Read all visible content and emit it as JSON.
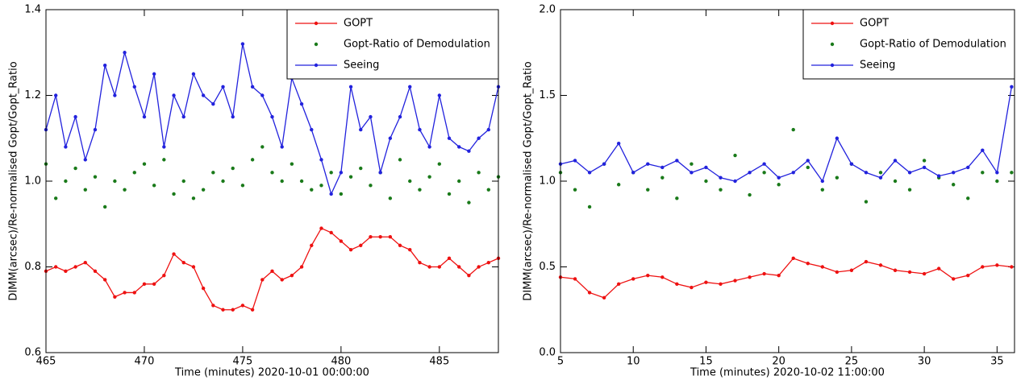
{
  "chart_data": [
    {
      "type": "line",
      "xlabel": "Time (minutes) 2020-10-01 00:00:00",
      "ylabel": "DIMM(arcsec)/Re-normalised Gopt/Gopt_Ratio",
      "xlim": [
        465,
        488
      ],
      "xticks": [
        465,
        470,
        475,
        480,
        485
      ],
      "ylim": [
        0.6,
        1.4
      ],
      "yticks": [
        0.6,
        0.8,
        {
          "value": 1,
          "label": "1.0"
        },
        1.2,
        1.4
      ],
      "legend": "top right",
      "x": [
        465,
        465.5,
        466,
        466.5,
        467,
        467.5,
        468,
        468.5,
        469,
        469.5,
        470,
        470.5,
        471,
        471.5,
        472,
        472.5,
        473,
        473.5,
        474,
        474.5,
        475,
        475.5,
        476,
        476.5,
        477,
        477.5,
        478,
        478.5,
        479,
        479.5,
        480,
        480.5,
        481,
        481.5,
        482,
        482.5,
        483,
        483.5,
        484,
        484.5,
        485,
        485.5,
        486,
        486.5,
        487,
        487.5,
        488
      ],
      "series": [
        {
          "name": "GOPT",
          "color": "#ee1111",
          "style": "line",
          "values": [
            0.79,
            0.8,
            0.79,
            0.8,
            0.81,
            0.79,
            0.77,
            0.73,
            0.74,
            0.74,
            0.76,
            0.76,
            0.78,
            0.83,
            0.81,
            0.8,
            0.75,
            0.71,
            0.7,
            0.7,
            0.71,
            0.7,
            0.77,
            0.79,
            0.77,
            0.78,
            0.8,
            0.85,
            0.89,
            0.88,
            0.86,
            0.84,
            0.85,
            0.87,
            0.87,
            0.87,
            0.85,
            0.84,
            0.81,
            0.8,
            0.8,
            0.82,
            0.8,
            0.78,
            0.8,
            0.81,
            0.82
          ]
        },
        {
          "name": "Gopt-Ratio of Demodulation",
          "color": "#1a7a1a",
          "style": "markers",
          "values": [
            1.04,
            0.96,
            1.0,
            1.03,
            0.98,
            1.01,
            0.94,
            1.0,
            0.98,
            1.02,
            1.04,
            0.99,
            1.05,
            0.97,
            1.0,
            0.96,
            0.98,
            1.02,
            1.0,
            1.03,
            0.99,
            1.05,
            1.08,
            1.02,
            1.0,
            1.04,
            1.0,
            0.98,
            0.99,
            1.02,
            0.97,
            1.01,
            1.03,
            0.99,
            1.02,
            0.96,
            1.05,
            1.0,
            0.98,
            1.01,
            1.04,
            0.97,
            1.0,
            0.95,
            1.02,
            0.98,
            1.01
          ]
        },
        {
          "name": "Seeing",
          "color": "#2222dd",
          "style": "line",
          "values": [
            1.12,
            1.2,
            1.08,
            1.15,
            1.05,
            1.12,
            1.27,
            1.2,
            1.3,
            1.22,
            1.15,
            1.25,
            1.08,
            1.2,
            1.15,
            1.25,
            1.2,
            1.18,
            1.22,
            1.15,
            1.32,
            1.22,
            1.2,
            1.15,
            1.08,
            1.24,
            1.18,
            1.12,
            1.05,
            0.97,
            1.02,
            1.22,
            1.12,
            1.15,
            1.02,
            1.1,
            1.15,
            1.22,
            1.12,
            1.08,
            1.2,
            1.1,
            1.08,
            1.07,
            1.1,
            1.12,
            1.22
          ]
        }
      ]
    },
    {
      "type": "line",
      "xlabel": "Time (minutes) 2020-10-02 11:00:00",
      "ylabel": "DIMM(arcsec)/Re-normalised Gopt/Gopt_Ratio",
      "xlim": [
        5,
        36.2
      ],
      "xticks": [
        5,
        10,
        15,
        20,
        25,
        30,
        35
      ],
      "ylim": [
        0,
        2
      ],
      "yticks": [
        {
          "value": 0,
          "label": "0.0"
        },
        0.5,
        {
          "value": 1,
          "label": "1.0"
        },
        1.5,
        {
          "value": 2,
          "label": "2.0"
        }
      ],
      "legend": "top right",
      "x": [
        5,
        6,
        7,
        8,
        9,
        10,
        11,
        12,
        13,
        14,
        15,
        16,
        17,
        18,
        19,
        20,
        21,
        22,
        23,
        24,
        25,
        26,
        27,
        28,
        29,
        30,
        31,
        32,
        33,
        34,
        35,
        36
      ],
      "series": [
        {
          "name": "GOPT",
          "color": "#ee1111",
          "style": "line",
          "values": [
            0.44,
            0.43,
            0.35,
            0.32,
            0.4,
            0.43,
            0.45,
            0.44,
            0.4,
            0.38,
            0.41,
            0.4,
            0.42,
            0.44,
            0.46,
            0.45,
            0.55,
            0.52,
            0.5,
            0.47,
            0.48,
            0.53,
            0.51,
            0.48,
            0.47,
            0.46,
            0.49,
            0.43,
            0.45,
            0.5,
            0.51,
            0.5
          ]
        },
        {
          "name": "Gopt-Ratio of Demodulation",
          "color": "#1a7a1a",
          "style": "markers",
          "values": [
            1.05,
            0.95,
            0.85,
            1.1,
            0.98,
            1.05,
            0.95,
            1.02,
            0.9,
            1.1,
            1.0,
            0.95,
            1.15,
            0.92,
            1.05,
            0.98,
            1.3,
            1.08,
            0.95,
            1.02,
            1.1,
            0.88,
            1.05,
            1.0,
            0.95,
            1.12,
            1.02,
            0.98,
            0.9,
            1.05,
            1.0,
            1.05
          ]
        },
        {
          "name": "Seeing",
          "color": "#2222dd",
          "style": "line",
          "values": [
            1.1,
            1.12,
            1.05,
            1.1,
            1.22,
            1.05,
            1.1,
            1.08,
            1.12,
            1.05,
            1.08,
            1.02,
            1.0,
            1.05,
            1.1,
            1.02,
            1.05,
            1.12,
            1.0,
            1.25,
            1.1,
            1.05,
            1.02,
            1.12,
            1.05,
            1.08,
            1.03,
            1.05,
            1.08,
            1.18,
            1.05,
            1.55
          ]
        }
      ]
    }
  ]
}
